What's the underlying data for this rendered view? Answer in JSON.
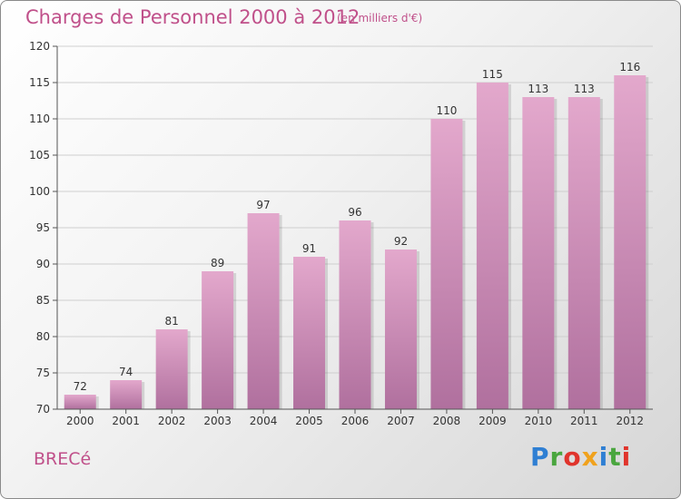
{
  "title": "Charges de Personnel 2000 à 2012",
  "subtitle": "(en milliers d'€)",
  "commune": "BRECé",
  "logo": {
    "text": "Proxiti",
    "letters": [
      "P",
      "r",
      "o",
      "x",
      "i",
      "t",
      "i"
    ]
  },
  "colors": {
    "title": "#c0508a",
    "bar_top": "#e3a8cc",
    "bar_bottom": "#b0709e",
    "grid": "#cfcfcf",
    "axis": "#555555"
  },
  "chart_data": {
    "type": "bar",
    "categories": [
      "2000",
      "2001",
      "2002",
      "2003",
      "2004",
      "2005",
      "2006",
      "2007",
      "2008",
      "2009",
      "2010",
      "2011",
      "2012"
    ],
    "values": [
      72,
      74,
      81,
      89,
      97,
      91,
      96,
      92,
      110,
      115,
      113,
      113,
      116
    ],
    "data_labels": [
      "72",
      "74",
      "81",
      "89",
      "97",
      "91",
      "96",
      "92",
      "110",
      "115",
      "113",
      "113",
      "116"
    ],
    "title": "Charges de Personnel 2000 à 2012",
    "ylim": [
      70,
      120
    ],
    "yticks": [
      70,
      75,
      80,
      85,
      90,
      95,
      100,
      105,
      110,
      115,
      120
    ],
    "grid": true
  }
}
